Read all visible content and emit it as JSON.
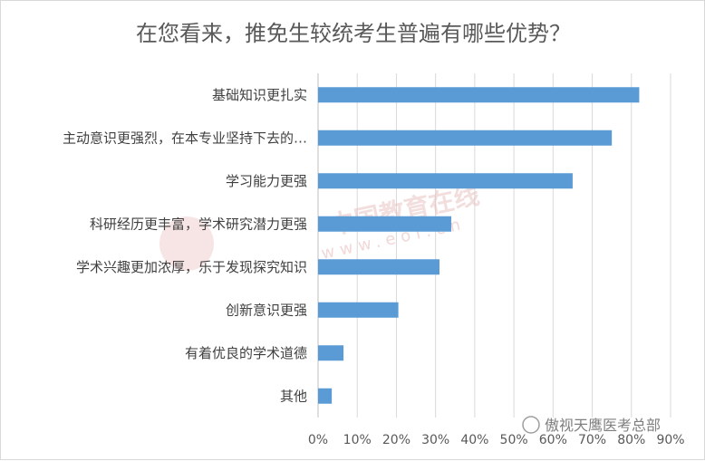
{
  "chart_data": {
    "type": "bar",
    "orientation": "horizontal",
    "title": "在您看来，推免生较统考生普遍有哪些优势？",
    "categories": [
      "基础知识更扎实",
      "主动意识更强烈，在本专业坚持下去的…",
      "学习能力更强",
      "科研经历更丰富，学术研究潜力更强",
      "学术兴趣更加浓厚，乐于发现探究知识",
      "创新意识更强",
      "有着优良的学术道德",
      "其他"
    ],
    "values": [
      0.82,
      0.75,
      0.65,
      0.34,
      0.31,
      0.205,
      0.065,
      0.035
    ],
    "xlim": [
      0,
      0.9
    ],
    "xticks": [
      "0%",
      "10%",
      "20%",
      "30%",
      "40%",
      "50%",
      "60%",
      "70%",
      "80%",
      "90%"
    ],
    "grid": true,
    "bar_color": "#5b9bd5"
  },
  "watermark": {
    "main": "中国教育在线",
    "sub": "www.eol.cn",
    "source": "傲视天鹰医考总部"
  }
}
